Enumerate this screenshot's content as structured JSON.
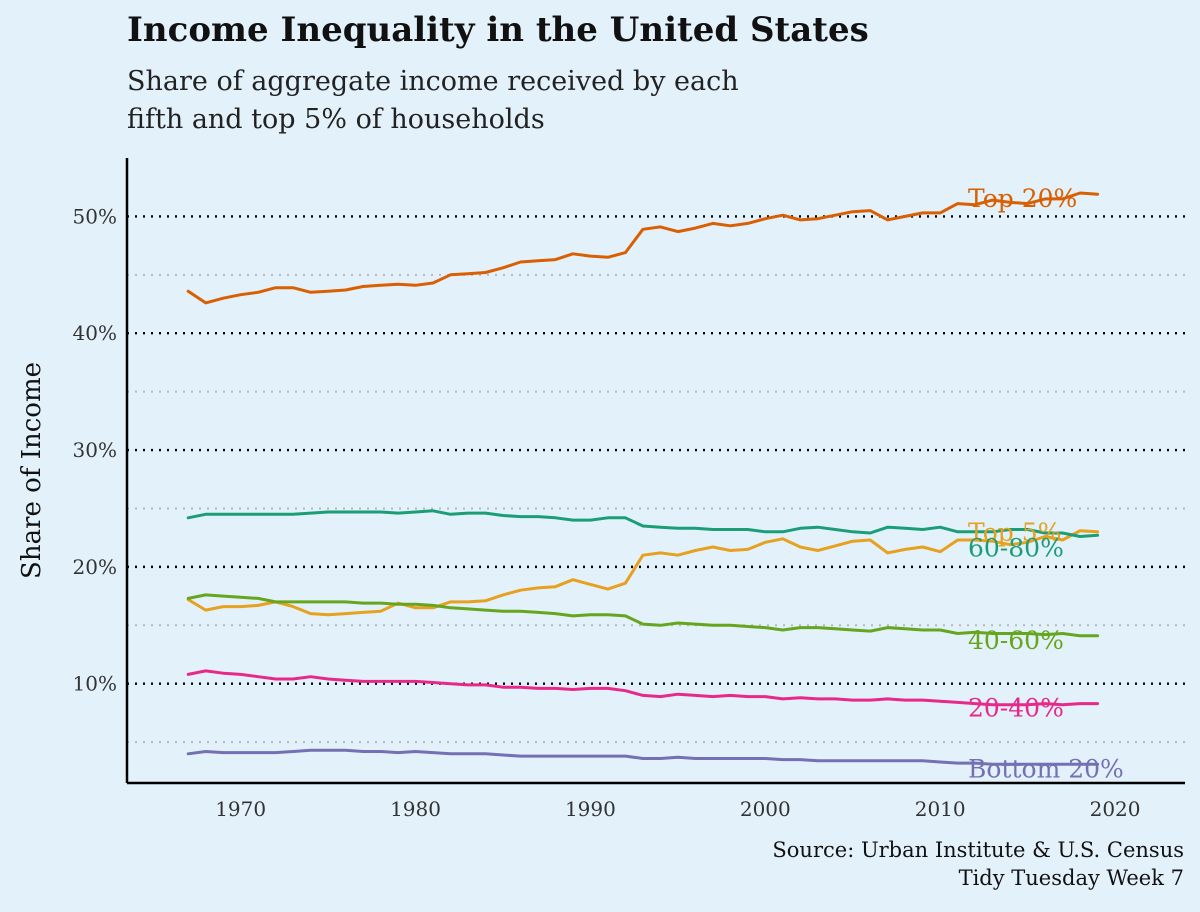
{
  "chart_data": {
    "type": "line",
    "title": "Income Inequality in the United States",
    "subtitle": [
      "Share of aggregate income received by each",
      "fifth and top 5% of households"
    ],
    "ylabel": "Share of Income",
    "xlabel": "",
    "xlim": [
      1963.5,
      2024
    ],
    "ylim": [
      1.5,
      55
    ],
    "x_ticks": [
      1970,
      1980,
      1990,
      2000,
      2010,
      2020
    ],
    "x_tick_labels": [
      "1970",
      "1980",
      "1990",
      "2000",
      "2010",
      "2020"
    ],
    "y_ticks": [
      10,
      20,
      30,
      40,
      50
    ],
    "y_tick_labels": [
      "10%",
      "20%",
      "30%",
      "40%",
      "50%"
    ],
    "y_minor_ticks": [
      5,
      15,
      25,
      35,
      45
    ],
    "grid": "horizontal dotted",
    "legend": "direct labels at line ends",
    "years": [
      1967,
      1968,
      1969,
      1970,
      1971,
      1972,
      1973,
      1974,
      1975,
      1976,
      1977,
      1978,
      1979,
      1980,
      1981,
      1982,
      1983,
      1984,
      1985,
      1986,
      1987,
      1988,
      1989,
      1990,
      1991,
      1992,
      1993,
      1994,
      1995,
      1996,
      1997,
      1998,
      1999,
      2000,
      2001,
      2002,
      2003,
      2004,
      2005,
      2006,
      2007,
      2008,
      2009,
      2010,
      2011,
      2012,
      2013,
      2014,
      2015,
      2016,
      2017,
      2018,
      2019
    ],
    "series": [
      {
        "name": "Top 20%",
        "color": "#d95f02",
        "values": [
          43.6,
          42.6,
          43.0,
          43.3,
          43.5,
          43.9,
          43.9,
          43.5,
          43.6,
          43.7,
          44.0,
          44.1,
          44.2,
          44.1,
          44.3,
          45.0,
          45.1,
          45.2,
          45.6,
          46.1,
          46.2,
          46.3,
          46.8,
          46.6,
          46.5,
          46.9,
          48.9,
          49.1,
          48.7,
          49.0,
          49.4,
          49.2,
          49.4,
          49.8,
          50.1,
          49.7,
          49.8,
          50.1,
          50.4,
          50.5,
          49.7,
          50.0,
          50.3,
          50.3,
          51.1,
          51.0,
          51.4,
          51.2,
          51.1,
          51.5,
          51.5,
          52.0,
          51.9
        ]
      },
      {
        "name": "Top 5%",
        "color": "#e6a11f",
        "values": [
          17.2,
          16.3,
          16.6,
          16.6,
          16.7,
          17.0,
          16.6,
          16.0,
          15.9,
          16.0,
          16.1,
          16.2,
          16.9,
          16.5,
          16.5,
          17.0,
          17.0,
          17.1,
          17.6,
          18.0,
          18.2,
          18.3,
          18.9,
          18.5,
          18.1,
          18.6,
          21.0,
          21.2,
          21.0,
          21.4,
          21.7,
          21.4,
          21.5,
          22.1,
          22.4,
          21.7,
          21.4,
          21.8,
          22.2,
          22.3,
          21.2,
          21.5,
          21.7,
          21.3,
          22.3,
          22.3,
          22.2,
          21.9,
          22.1,
          22.6,
          22.3,
          23.1,
          23.0
        ]
      },
      {
        "name": "60-80%",
        "color": "#1b9e77",
        "values": [
          24.2,
          24.5,
          24.5,
          24.5,
          24.5,
          24.5,
          24.5,
          24.6,
          24.7,
          24.7,
          24.7,
          24.7,
          24.6,
          24.7,
          24.8,
          24.5,
          24.6,
          24.6,
          24.4,
          24.3,
          24.3,
          24.2,
          24.0,
          24.0,
          24.2,
          24.2,
          23.5,
          23.4,
          23.3,
          23.3,
          23.2,
          23.2,
          23.2,
          23.0,
          23.0,
          23.3,
          23.4,
          23.2,
          23.0,
          22.9,
          23.4,
          23.3,
          23.2,
          23.4,
          23.0,
          23.0,
          23.0,
          23.2,
          23.2,
          22.9,
          22.9,
          22.6,
          22.7
        ]
      },
      {
        "name": "40-60%",
        "color": "#66a61e",
        "values": [
          17.3,
          17.6,
          17.5,
          17.4,
          17.3,
          17.0,
          17.0,
          17.0,
          17.0,
          17.0,
          16.9,
          16.9,
          16.8,
          16.8,
          16.7,
          16.5,
          16.4,
          16.3,
          16.2,
          16.2,
          16.1,
          16.0,
          15.8,
          15.9,
          15.9,
          15.8,
          15.1,
          15.0,
          15.2,
          15.1,
          15.0,
          15.0,
          14.9,
          14.8,
          14.6,
          14.8,
          14.8,
          14.7,
          14.6,
          14.5,
          14.8,
          14.7,
          14.6,
          14.6,
          14.3,
          14.4,
          14.3,
          14.3,
          14.3,
          14.2,
          14.3,
          14.1,
          14.1
        ]
      },
      {
        "name": "20-40%",
        "color": "#e7298a",
        "values": [
          10.8,
          11.1,
          10.9,
          10.8,
          10.6,
          10.4,
          10.4,
          10.6,
          10.4,
          10.3,
          10.2,
          10.2,
          10.2,
          10.2,
          10.1,
          10.0,
          9.9,
          9.9,
          9.7,
          9.7,
          9.6,
          9.6,
          9.5,
          9.6,
          9.6,
          9.4,
          9.0,
          8.9,
          9.1,
          9.0,
          8.9,
          9.0,
          8.9,
          8.9,
          8.7,
          8.8,
          8.7,
          8.7,
          8.6,
          8.6,
          8.7,
          8.6,
          8.6,
          8.5,
          8.4,
          8.3,
          8.2,
          8.2,
          8.2,
          8.3,
          8.2,
          8.3,
          8.3
        ]
      },
      {
        "name": "Bottom 20%",
        "color": "#7570b3",
        "values": [
          4.0,
          4.2,
          4.1,
          4.1,
          4.1,
          4.1,
          4.2,
          4.3,
          4.3,
          4.3,
          4.2,
          4.2,
          4.1,
          4.2,
          4.1,
          4.0,
          4.0,
          4.0,
          3.9,
          3.8,
          3.8,
          3.8,
          3.8,
          3.8,
          3.8,
          3.8,
          3.6,
          3.6,
          3.7,
          3.6,
          3.6,
          3.6,
          3.6,
          3.6,
          3.5,
          3.5,
          3.4,
          3.4,
          3.4,
          3.4,
          3.4,
          3.4,
          3.4,
          3.3,
          3.2,
          3.2,
          3.1,
          3.1,
          3.1,
          3.1,
          3.1,
          3.1,
          3.1
        ]
      }
    ],
    "caption": [
      "Source: Urban Institute & U.S. Census",
      "Tidy Tuesday Week 7"
    ]
  }
}
